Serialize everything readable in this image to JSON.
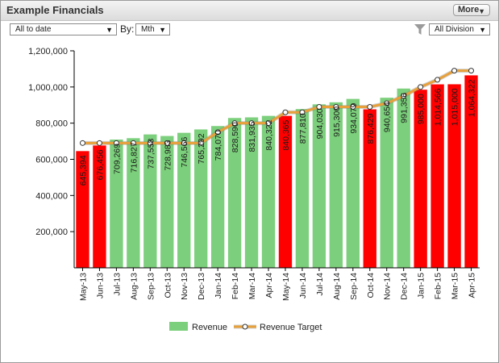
{
  "header": {
    "title": "Example Financials",
    "more_label": "More"
  },
  "controls": {
    "date_range": "All to date",
    "by_label": "By:",
    "period": "Mth",
    "division": "All Division"
  },
  "icons": {
    "more": "chevron-down-icon",
    "filter": "filter-funnel-icon",
    "dropdown": "dropdown-arrow-icon"
  },
  "colors": {
    "above_target": "#7ccf7c",
    "below_target": "#ff0000",
    "target_line": "#e8a03a",
    "target_marker": "#ffffff"
  },
  "chart_data": {
    "type": "bar",
    "categories": [
      "May-13",
      "Jun-13",
      "Jul-13",
      "Aug-13",
      "Sep-13",
      "Oct-13",
      "Nov-13",
      "Dec-13",
      "Jan-14",
      "Feb-14",
      "Mar-14",
      "Apr-14",
      "May-14",
      "Jun-14",
      "Jul-14",
      "Aug-14",
      "Sep-14",
      "Oct-14",
      "Nov-14",
      "Dec-14",
      "Jan-15",
      "Feb-15",
      "Mar-15",
      "Apr-15"
    ],
    "series": [
      {
        "name": "Revenue",
        "type": "bar",
        "values": [
          645394,
          676456,
          709269,
          716827,
          737558,
          728983,
          746566,
          765292,
          784070,
          828590,
          831935,
          840322,
          840365,
          877810,
          904030,
          915300,
          934079,
          876429,
          940654,
          991356,
          985000,
          1014566,
          1015000,
          1064322
        ],
        "labels": [
          "645,394",
          "676,456",
          "709,269",
          "716,827",
          "737,558",
          "728,983",
          "746,566",
          "765,292",
          "784,070",
          "828,590",
          "831,935",
          "840,322",
          "840,365",
          "877,810",
          "904,030",
          "915,300",
          "934,079",
          "876,429",
          "940,654",
          "991,356",
          "985,000",
          "1,014,566",
          "1,015,000",
          "1,064,322"
        ],
        "status": [
          "below",
          "below",
          "above",
          "above",
          "above",
          "above",
          "above",
          "above",
          "above",
          "above",
          "above",
          "above",
          "below",
          "above",
          "above",
          "above",
          "above",
          "below",
          "above",
          "above",
          "below",
          "below",
          "below",
          "below"
        ]
      },
      {
        "name": "Revenue Target",
        "type": "line",
        "values": [
          690000,
          690000,
          690000,
          690000,
          690000,
          690000,
          690000,
          690000,
          750000,
          800000,
          800000,
          800000,
          860000,
          860000,
          890000,
          890000,
          890000,
          890000,
          910000,
          950000,
          1000000,
          1040000,
          1090000,
          1090000
        ]
      }
    ],
    "ylim": [
      0,
      1200000
    ],
    "yticks": [
      200000,
      400000,
      600000,
      800000,
      1000000,
      1200000
    ],
    "ytick_labels": [
      "200,000",
      "400,000",
      "600,000",
      "800,000",
      "1,000,000",
      "1,200,000"
    ],
    "legend_position": "bottom-center",
    "grid": false
  }
}
